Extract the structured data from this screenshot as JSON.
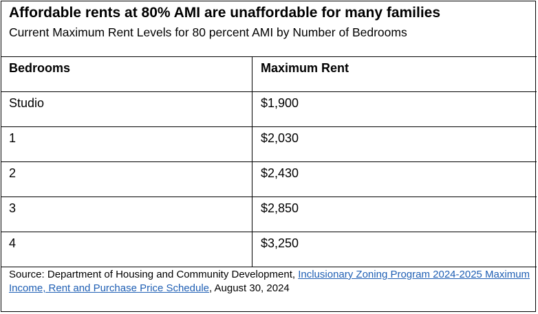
{
  "title": "Affordable rents at 80% AMI are unaffordable for many families",
  "subtitle": "Current Maximum Rent Levels for 80 percent AMI by Number of Bedrooms",
  "table": {
    "headers": [
      "Bedrooms",
      "Maximum Rent"
    ],
    "rows": [
      [
        "Studio",
        "$1,900"
      ],
      [
        "1",
        "$2,030"
      ],
      [
        "2",
        "$2,430"
      ],
      [
        "3",
        "$2,850"
      ],
      [
        "4",
        "$3,250"
      ]
    ]
  },
  "source": {
    "prefix": "Source:  Department of Housing and Community Development, ",
    "link_text": "Inclusionary Zoning Program 2024-2025 Maximum Income, Rent and Purchase Price Schedule",
    "suffix": ", August 30, 2024"
  },
  "colors": {
    "link": "#1f5fb4",
    "border": "#000000"
  }
}
